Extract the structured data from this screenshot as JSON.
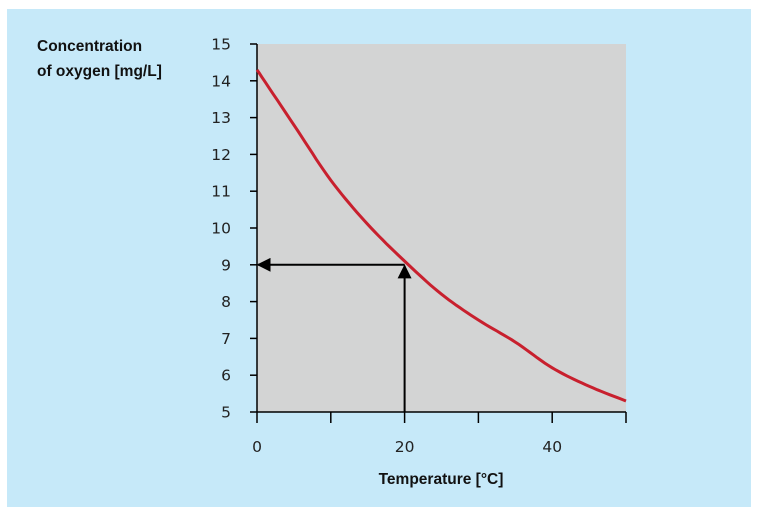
{
  "chart_data": {
    "type": "line",
    "ylabel": [
      "Concentration",
      "of oxygen [mg/L]"
    ],
    "xlabel": "Temperature [°C]",
    "xlim": [
      0,
      50
    ],
    "ylim": [
      5,
      15
    ],
    "x_ticks": [
      0,
      10,
      20,
      30,
      40,
      50
    ],
    "x_tick_labels": [
      "0",
      "",
      "20",
      "",
      "40",
      ""
    ],
    "y_ticks": [
      5,
      6,
      7,
      8,
      9,
      10,
      11,
      12,
      13,
      14,
      15
    ],
    "y_tick_labels": [
      "5",
      "6",
      "7",
      "8",
      "9",
      "10",
      "11",
      "12",
      "13",
      "14",
      "15"
    ],
    "series": [
      {
        "x": [
          0,
          5,
          10,
          15,
          20,
          25,
          30,
          35,
          40,
          45,
          50
        ],
        "y": [
          14.3,
          12.8,
          11.3,
          10.1,
          9.1,
          8.2,
          7.5,
          6.9,
          6.2,
          5.7,
          5.3
        ],
        "color": "#c8202e"
      }
    ],
    "annotation": {
      "point": [
        20,
        9.1
      ],
      "label_y": 9,
      "arrows": [
        "to-x-axis",
        "to-y-axis"
      ]
    },
    "plot_background": "#d3d4d4",
    "figure_background": "#c6e9f9",
    "grid": false
  }
}
